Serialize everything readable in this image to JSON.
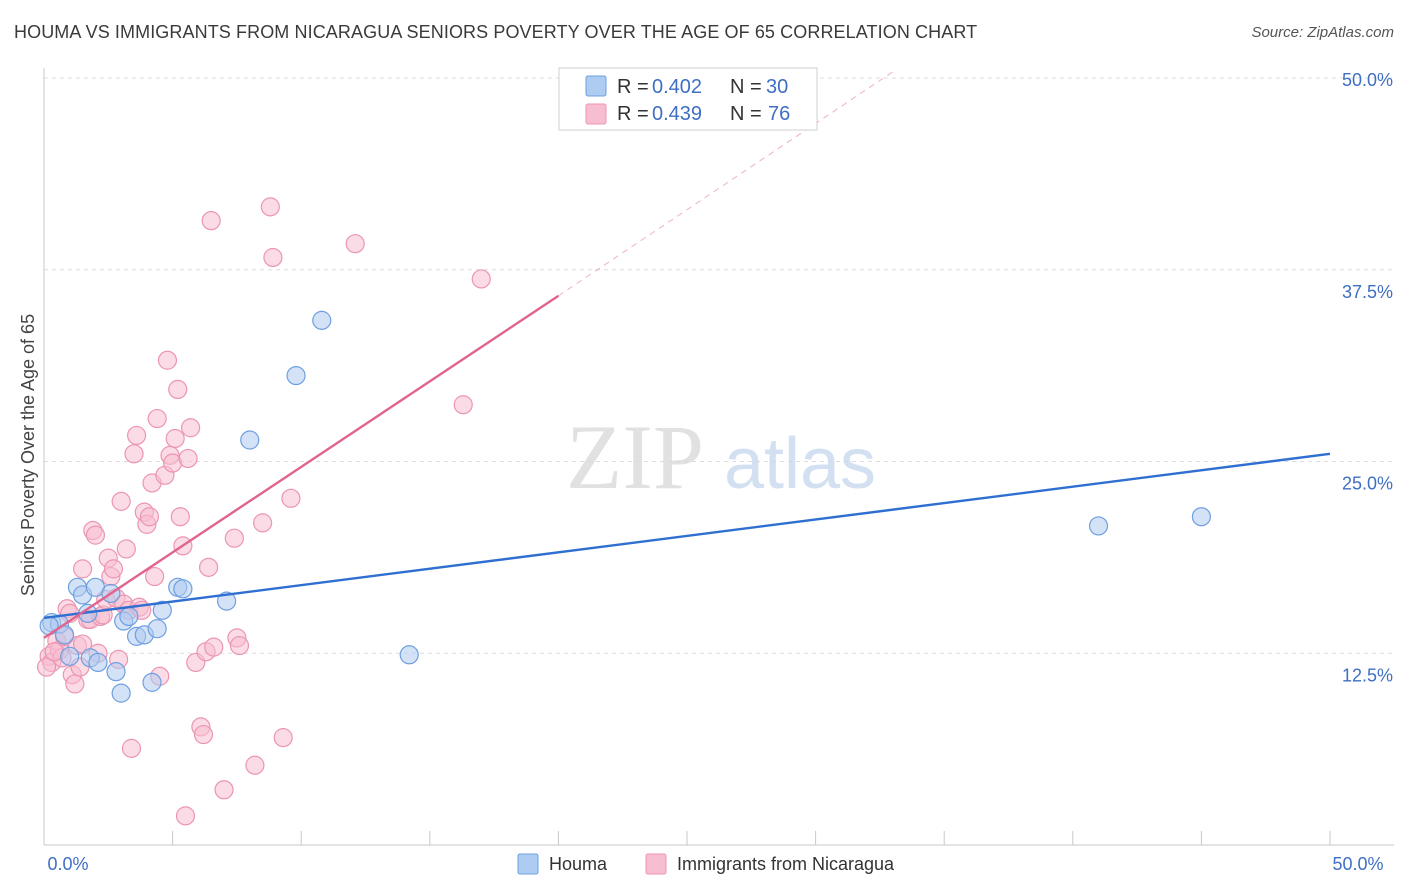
{
  "title": "HOUMA VS IMMIGRANTS FROM NICARAGUA SENIORS POVERTY OVER THE AGE OF 65 CORRELATION CHART",
  "source": "Source: ZipAtlas.com",
  "watermark": {
    "zip": "ZIP",
    "atlas": "atlas"
  },
  "colors": {
    "houma_fill": "#aecbf1",
    "houma_stroke": "#6e9fe0",
    "houma_line": "#2f6fd1",
    "nic_fill": "#f7bdd0",
    "nic_stroke": "#ec95b2",
    "nic_line": "#e0648e",
    "accent_text": "#3f6fc4",
    "grid": "#dcdcdc"
  },
  "legend_top": [
    {
      "r_label": "R =",
      "r_value": "0.402",
      "n_label": "N =",
      "n_value": "30"
    },
    {
      "r_label": "R =",
      "r_value": "0.439",
      "n_label": "N =",
      "n_value": "76"
    }
  ],
  "chart_data": {
    "type": "scatter",
    "title": "HOUMA VS IMMIGRANTS FROM NICARAGUA SENIORS POVERTY OVER THE AGE OF 65 CORRELATION CHART",
    "xlabel": "",
    "ylabel": "Seniors Poverty Over the Age of 65",
    "xlim": [
      0,
      50
    ],
    "ylim": [
      0,
      50
    ],
    "y_ticks": [
      {
        "value": 12.5,
        "label": "12.5%"
      },
      {
        "value": 25.0,
        "label": "25.0%"
      },
      {
        "value": 37.5,
        "label": "37.5%"
      },
      {
        "value": 50.0,
        "label": "50.0%"
      }
    ],
    "x_tick_labels": {
      "min": "0.0%",
      "max": "50.0%"
    },
    "x_minor_ticks": [
      0,
      5,
      10,
      15,
      20,
      25,
      30,
      35,
      40,
      45,
      50
    ],
    "grid": true,
    "legend_position": "bottom",
    "series": [
      {
        "name": "Houma",
        "key": "houma",
        "points": [
          [
            0.3,
            14.5
          ],
          [
            0.6,
            14.4
          ],
          [
            0.8,
            13.7
          ],
          [
            1.0,
            12.3
          ],
          [
            1.3,
            16.8
          ],
          [
            1.5,
            16.3
          ],
          [
            1.7,
            15.1
          ],
          [
            1.8,
            12.2
          ],
          [
            2.0,
            16.8
          ],
          [
            2.1,
            11.9
          ],
          [
            2.6,
            16.4
          ],
          [
            2.8,
            11.3
          ],
          [
            3.0,
            9.9
          ],
          [
            3.1,
            14.6
          ],
          [
            3.3,
            14.9
          ],
          [
            3.6,
            13.6
          ],
          [
            3.9,
            13.7
          ],
          [
            4.2,
            10.6
          ],
          [
            4.4,
            14.1
          ],
          [
            4.6,
            15.3
          ],
          [
            5.2,
            16.8
          ],
          [
            5.4,
            16.7
          ],
          [
            7.1,
            15.9
          ],
          [
            8.0,
            26.4
          ],
          [
            9.8,
            30.6
          ],
          [
            10.8,
            34.2
          ],
          [
            14.2,
            12.4
          ],
          [
            41.0,
            20.8
          ],
          [
            45.0,
            21.4
          ],
          [
            0.2,
            14.3
          ]
        ],
        "trend": {
          "x0": 0,
          "y0": 14.8,
          "x1": 50,
          "y1": 25.5
        }
      },
      {
        "name": "Immigrants from Nicaragua",
        "key": "nic",
        "points": [
          [
            0.2,
            12.3
          ],
          [
            0.3,
            11.9
          ],
          [
            0.5,
            13.3
          ],
          [
            0.6,
            12.7
          ],
          [
            0.7,
            12.2
          ],
          [
            0.8,
            13.6
          ],
          [
            0.9,
            15.4
          ],
          [
            1.0,
            15.1
          ],
          [
            1.1,
            11.1
          ],
          [
            1.2,
            10.5
          ],
          [
            1.3,
            13.0
          ],
          [
            1.4,
            11.6
          ],
          [
            1.5,
            18.0
          ],
          [
            1.5,
            13.1
          ],
          [
            1.7,
            14.7
          ],
          [
            1.8,
            14.7
          ],
          [
            1.9,
            20.5
          ],
          [
            2.0,
            20.2
          ],
          [
            2.1,
            12.5
          ],
          [
            2.2,
            14.9
          ],
          [
            2.3,
            15.0
          ],
          [
            2.4,
            16.0
          ],
          [
            2.5,
            18.7
          ],
          [
            2.6,
            17.5
          ],
          [
            2.7,
            18.0
          ],
          [
            2.8,
            16.1
          ],
          [
            2.9,
            12.1
          ],
          [
            3.0,
            22.4
          ],
          [
            3.1,
            15.7
          ],
          [
            3.2,
            19.3
          ],
          [
            3.3,
            15.3
          ],
          [
            3.4,
            6.3
          ],
          [
            3.5,
            25.5
          ],
          [
            3.6,
            26.7
          ],
          [
            3.7,
            15.5
          ],
          [
            3.8,
            15.3
          ],
          [
            3.9,
            21.7
          ],
          [
            4.0,
            20.9
          ],
          [
            4.1,
            21.4
          ],
          [
            4.2,
            23.6
          ],
          [
            4.3,
            17.5
          ],
          [
            4.4,
            27.8
          ],
          [
            4.5,
            11.0
          ],
          [
            4.7,
            24.1
          ],
          [
            4.8,
            31.6
          ],
          [
            4.9,
            25.4
          ],
          [
            5.0,
            24.9
          ],
          [
            5.1,
            26.5
          ],
          [
            5.2,
            29.7
          ],
          [
            5.3,
            21.4
          ],
          [
            5.4,
            19.5
          ],
          [
            5.5,
            1.9
          ],
          [
            5.6,
            25.2
          ],
          [
            5.7,
            27.2
          ],
          [
            5.9,
            11.9
          ],
          [
            6.1,
            7.7
          ],
          [
            6.2,
            7.2
          ],
          [
            6.3,
            12.6
          ],
          [
            6.4,
            18.1
          ],
          [
            6.5,
            40.7
          ],
          [
            6.6,
            12.9
          ],
          [
            7.0,
            3.6
          ],
          [
            7.4,
            20.0
          ],
          [
            7.5,
            13.5
          ],
          [
            7.6,
            13.0
          ],
          [
            8.2,
            5.2
          ],
          [
            8.5,
            21.0
          ],
          [
            8.8,
            41.6
          ],
          [
            8.9,
            38.3
          ],
          [
            9.3,
            7.0
          ],
          [
            9.6,
            22.6
          ],
          [
            12.1,
            39.2
          ],
          [
            16.3,
            28.7
          ],
          [
            17.0,
            36.9
          ],
          [
            0.1,
            11.6
          ],
          [
            0.4,
            12.6
          ]
        ],
        "trend": {
          "x0": 0,
          "y0": 13.5,
          "x1": 20,
          "y1": 35.8
        },
        "trend_extension": {
          "x0": 20,
          "y0": 35.8,
          "x1": 33,
          "y1": 50.4
        }
      }
    ]
  }
}
